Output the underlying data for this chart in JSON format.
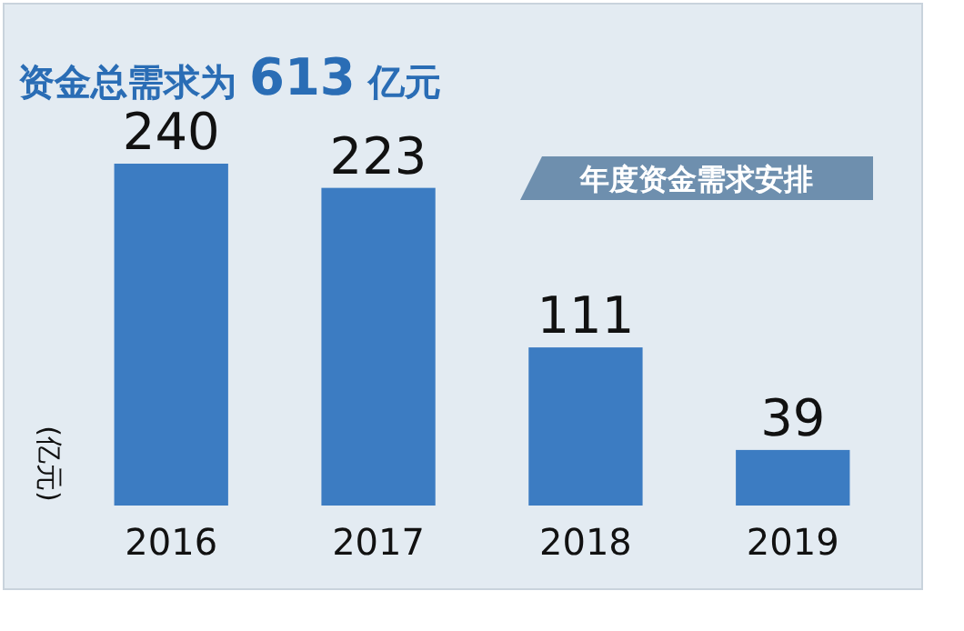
{
  "chart_data": {
    "type": "bar",
    "title": "资金总需求为 613 亿元",
    "annotations": [
      "年度资金需求安排"
    ],
    "ylabel": "(亿元)",
    "categories": [
      "2016",
      "2017",
      "2018",
      "2019"
    ],
    "values": [
      240,
      223,
      111,
      39
    ],
    "color": "#3c7cc2",
    "data_labels": true
  }
}
